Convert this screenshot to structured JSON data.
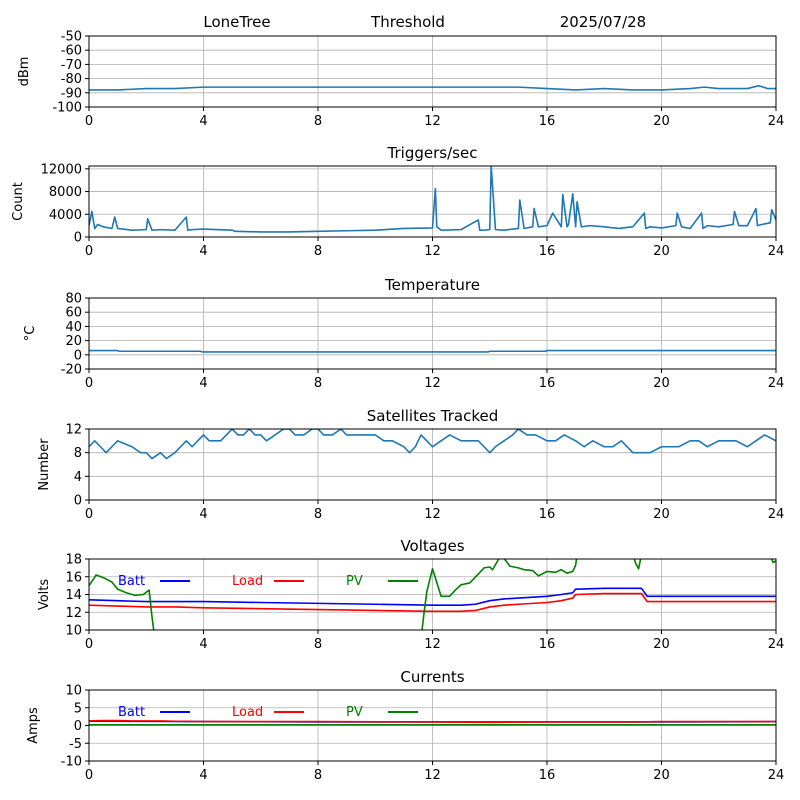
{
  "header": {
    "site": "LoneTree",
    "mode": "Threshold",
    "date": "2025/07/28"
  },
  "colors": {
    "main": "#1f77b4",
    "batt": "#0000ff",
    "load": "#ff0000",
    "pv": "#008000",
    "grid": "#b0b0b0"
  },
  "chart_data": [
    {
      "id": "signal",
      "type": "line",
      "title": "",
      "xlabel": "",
      "ylabel": "dBm",
      "xlim": [
        0,
        24
      ],
      "ylim": [
        -100,
        -50
      ],
      "xticks": [
        0,
        4,
        8,
        12,
        16,
        20,
        24
      ],
      "yticks": [
        -100,
        -90,
        -80,
        -70,
        -60,
        -50
      ],
      "grid": true,
      "series": [
        {
          "x": [
            0,
            1,
            2,
            3,
            4,
            5,
            6,
            7,
            8,
            9,
            10,
            11,
            12,
            13,
            14,
            15,
            16,
            17,
            18,
            19,
            20,
            21,
            21.5,
            22,
            23,
            23.4,
            23.7,
            24
          ],
          "y": [
            -88,
            -88,
            -87,
            -87,
            -86,
            -86,
            -86,
            -86,
            -86,
            -86,
            -86,
            -86,
            -86,
            -86,
            -86,
            -86,
            -87,
            -88,
            -87,
            -88,
            -88,
            -87,
            -86,
            -87,
            -87,
            -85,
            -87,
            -87
          ]
        }
      ]
    },
    {
      "id": "triggers",
      "type": "line",
      "title": "Triggers/sec",
      "xlabel": "",
      "ylabel": "Count",
      "xlim": [
        0,
        24
      ],
      "ylim": [
        0,
        12500
      ],
      "xticks": [
        0,
        4,
        8,
        12,
        16,
        20,
        24
      ],
      "yticks": [
        0,
        4000,
        8000,
        12000
      ],
      "grid": true,
      "series": [
        {
          "x": [
            0,
            0.1,
            0.2,
            0.3,
            0.5,
            0.8,
            0.9,
            1.0,
            1.5,
            2.0,
            2.05,
            2.2,
            2.5,
            3.0,
            3.4,
            3.45,
            3.6,
            4,
            5,
            5.1,
            6,
            7,
            8,
            9,
            10,
            11,
            12,
            12.1,
            12.15,
            12.3,
            13,
            13.6,
            13.65,
            13.8,
            14,
            14.05,
            14.2,
            14.5,
            15,
            15.05,
            15.2,
            15.5,
            15.55,
            15.7,
            16,
            16.2,
            16.5,
            16.55,
            16.7,
            16.75,
            16.9,
            17.0,
            17.05,
            17.2,
            17.5,
            18,
            18.5,
            19,
            19.4,
            19.45,
            19.6,
            20,
            20.5,
            20.55,
            20.7,
            21,
            21.4,
            21.45,
            21.6,
            22,
            22.5,
            22.55,
            22.7,
            23,
            23.3,
            23.35,
            23.5,
            23.8,
            23.85,
            24
          ],
          "y": [
            2000,
            4500,
            1500,
            2200,
            1800,
            1500,
            3500,
            1500,
            1200,
            1300,
            3200,
            1200,
            1300,
            1200,
            3500,
            1200,
            1300,
            1400,
            1200,
            1000,
            900,
            900,
            1000,
            1100,
            1200,
            1500,
            1600,
            8500,
            1800,
            1200,
            1300,
            3000,
            1200,
            1200,
            1300,
            12500,
            1300,
            1200,
            1500,
            6500,
            1500,
            1800,
            5000,
            1800,
            2000,
            4200,
            1800,
            7500,
            1800,
            2200,
            7600,
            1800,
            6200,
            1800,
            2000,
            1800,
            1500,
            1800,
            4200,
            1500,
            1800,
            1600,
            2000,
            4200,
            1800,
            1500,
            4200,
            1500,
            2000,
            1800,
            2200,
            4500,
            2000,
            2000,
            5000,
            2000,
            2200,
            2500,
            4800,
            3000
          ]
        }
      ]
    },
    {
      "id": "temperature",
      "type": "line",
      "title": "Temperature",
      "xlabel": "",
      "ylabel": "°C",
      "xlim": [
        0,
        24
      ],
      "ylim": [
        -20,
        80
      ],
      "xticks": [
        0,
        4,
        8,
        12,
        16,
        20,
        24
      ],
      "yticks": [
        -20,
        0,
        20,
        40,
        60,
        80
      ],
      "grid": true,
      "series": [
        {
          "x": [
            0,
            1,
            1.05,
            3.9,
            3.95,
            8,
            12,
            13.95,
            14,
            15.95,
            16,
            20,
            24
          ],
          "y": [
            6,
            6,
            5,
            5,
            4,
            4,
            4,
            4,
            5,
            5,
            6,
            6,
            6
          ]
        }
      ]
    },
    {
      "id": "satellites",
      "type": "line",
      "title": "Satellites Tracked",
      "xlabel": "",
      "ylabel": "Number",
      "xlim": [
        0,
        24
      ],
      "ylim": [
        0,
        12
      ],
      "xticks": [
        0,
        4,
        8,
        12,
        16,
        20,
        24
      ],
      "yticks": [
        0,
        4,
        8,
        12
      ],
      "grid": true,
      "series": [
        {
          "x": [
            0,
            0.2,
            0.4,
            0.6,
            0.8,
            1.0,
            1.5,
            1.8,
            2.0,
            2.2,
            2.5,
            2.7,
            3.0,
            3.2,
            3.4,
            3.6,
            3.8,
            4.0,
            4.2,
            4.4,
            4.6,
            4.8,
            5.0,
            5.2,
            5.4,
            5.6,
            5.8,
            6.0,
            6.2,
            6.5,
            6.8,
            7.0,
            7.2,
            7.5,
            7.8,
            8.0,
            8.2,
            8.5,
            8.8,
            9.0,
            9.3,
            9.6,
            10.0,
            10.3,
            10.6,
            11.0,
            11.2,
            11.4,
            11.6,
            11.8,
            12.0,
            12.3,
            12.6,
            13.0,
            13.3,
            13.6,
            13.8,
            14.0,
            14.2,
            14.5,
            14.8,
            15.0,
            15.3,
            15.6,
            16.0,
            16.3,
            16.6,
            17.0,
            17.3,
            17.6,
            18.0,
            18.3,
            18.6,
            19.0,
            19.3,
            19.6,
            20.0,
            20.3,
            20.6,
            21.0,
            21.3,
            21.6,
            22.0,
            22.3,
            22.6,
            23.0,
            23.3,
            23.6,
            24.0
          ],
          "y": [
            9,
            10,
            9,
            8,
            9,
            10,
            9,
            8,
            8,
            7,
            8,
            7,
            8,
            9,
            10,
            9,
            10,
            11,
            10,
            10,
            10,
            11,
            12,
            11,
            11,
            12,
            11,
            11,
            10,
            11,
            12,
            12,
            11,
            11,
            12,
            12,
            11,
            11,
            12,
            11,
            11,
            11,
            11,
            10,
            10,
            9,
            8,
            9,
            11,
            10,
            9,
            10,
            11,
            10,
            10,
            10,
            9,
            8,
            9,
            10,
            11,
            12,
            11,
            11,
            10,
            10,
            11,
            10,
            9,
            10,
            9,
            9,
            10,
            8,
            8,
            8,
            9,
            9,
            9,
            10,
            10,
            9,
            10,
            10,
            10,
            9,
            10,
            11,
            10
          ]
        }
      ]
    },
    {
      "id": "voltages",
      "type": "line",
      "title": "Voltages",
      "xlabel": "",
      "ylabel": "Volts",
      "xlim": [
        0,
        24
      ],
      "ylim": [
        10,
        18
      ],
      "xticks": [
        0,
        4,
        8,
        12,
        16,
        20,
        24
      ],
      "yticks": [
        10,
        12,
        14,
        16,
        18
      ],
      "grid": true,
      "legend": [
        "Batt",
        "Load",
        "PV"
      ],
      "series": [
        {
          "name": "Batt",
          "color": "#0000ff",
          "x": [
            0,
            1,
            2,
            3,
            4,
            6,
            8,
            10,
            12,
            13,
            13.5,
            14,
            14.5,
            15,
            15.5,
            16,
            16.5,
            16.9,
            17,
            18,
            19,
            19.3,
            19.5,
            20,
            22,
            24
          ],
          "y": [
            13.4,
            13.3,
            13.2,
            13.2,
            13.2,
            13.1,
            13.0,
            12.9,
            12.8,
            12.8,
            12.9,
            13.3,
            13.5,
            13.6,
            13.7,
            13.8,
            14.0,
            14.2,
            14.6,
            14.7,
            14.7,
            14.7,
            13.8,
            13.8,
            13.8,
            13.8
          ]
        },
        {
          "name": "Load",
          "color": "#ff0000",
          "x": [
            0,
            1,
            2,
            3,
            4,
            6,
            8,
            10,
            12,
            13,
            13.5,
            14,
            14.5,
            15,
            15.5,
            16,
            16.5,
            16.9,
            17,
            18,
            19,
            19.3,
            19.5,
            20,
            22,
            24
          ],
          "y": [
            12.8,
            12.7,
            12.6,
            12.6,
            12.5,
            12.4,
            12.3,
            12.2,
            12.1,
            12.1,
            12.2,
            12.6,
            12.8,
            12.9,
            13.0,
            13.1,
            13.3,
            13.6,
            14.0,
            14.1,
            14.1,
            14.1,
            13.2,
            13.2,
            13.2,
            13.2
          ]
        },
        {
          "name": "PV",
          "color": "#008000",
          "x": [
            0,
            0.25,
            0.5,
            0.8,
            1.0,
            1.3,
            1.6,
            1.9,
            2.1,
            2.2,
            2.3,
            11.6,
            11.7,
            11.8,
            12.0,
            12.3,
            12.6,
            12.8,
            13.0,
            13.3,
            13.6,
            13.8,
            14.0,
            14.1,
            14.4,
            14.7,
            15.0,
            15.2,
            15.5,
            15.7,
            16.0,
            16.3,
            16.5,
            16.7,
            16.9,
            17.0,
            17.05,
            19.0,
            19.1,
            19.2,
            19.3,
            23.8,
            23.9,
            24
          ],
          "y": [
            15.0,
            16.2,
            15.9,
            15.4,
            14.6,
            14.2,
            13.9,
            14.0,
            14.5,
            11.5,
            9.0,
            9.0,
            11.8,
            14.3,
            16.9,
            13.8,
            13.8,
            14.5,
            15.1,
            15.3,
            16.3,
            17.0,
            17.1,
            16.8,
            18.5,
            17.2,
            17.0,
            16.8,
            16.7,
            16.1,
            16.6,
            16.5,
            16.8,
            16.4,
            16.6,
            17.3,
            18.5,
            18.5,
            17.5,
            16.9,
            18.5,
            18.5,
            17.6,
            17.8
          ]
        }
      ]
    },
    {
      "id": "currents",
      "type": "line",
      "title": "Currents",
      "xlabel": "",
      "ylabel": "Amps",
      "xlim": [
        0,
        24
      ],
      "ylim": [
        -10,
        10
      ],
      "xticks": [
        0,
        4,
        8,
        12,
        16,
        20,
        24
      ],
      "yticks": [
        -10,
        -5,
        0,
        5,
        10
      ],
      "grid": true,
      "legend": [
        "Batt",
        "Load",
        "PV"
      ],
      "series": [
        {
          "name": "Batt",
          "color": "#0000ff",
          "x": [
            0,
            4,
            8,
            12,
            16,
            20,
            24
          ],
          "y": [
            1.2,
            1.1,
            1.0,
            1.0,
            1.0,
            1.0,
            1.1
          ]
        },
        {
          "name": "Load",
          "color": "#ff0000",
          "x": [
            0,
            0.5,
            1,
            1.5,
            2,
            2.5,
            3,
            4,
            8,
            12,
            14,
            16,
            19,
            20,
            21,
            22,
            24
          ],
          "y": [
            1.3,
            1.4,
            1.4,
            1.3,
            1.3,
            1.3,
            1.2,
            1.1,
            1.1,
            1.0,
            0.9,
            1.0,
            1.0,
            1.1,
            1.1,
            1.1,
            1.1
          ]
        },
        {
          "name": "PV",
          "color": "#008000",
          "x": [
            0,
            4,
            8,
            12,
            16,
            20,
            24
          ],
          "y": [
            0.2,
            0.2,
            0.2,
            0.2,
            0.2,
            0.2,
            0.2
          ]
        }
      ]
    }
  ]
}
